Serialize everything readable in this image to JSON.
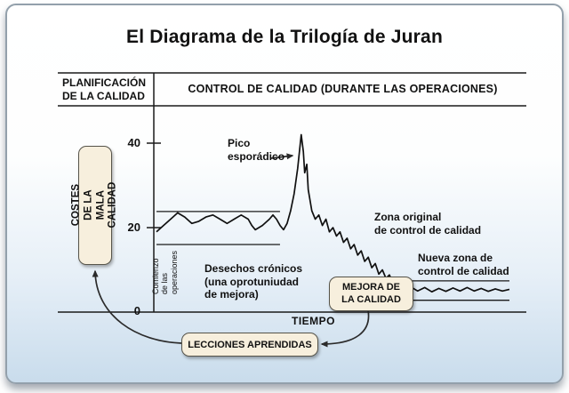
{
  "headers": {
    "planificacion": "PLANIFICACIÓN\nDE LA CALIDAD",
    "control": "CONTROL DE CALIDAD (DURANTE LAS OPERACIONES)"
  },
  "boxes": {
    "costes": "COSTES DE LA\nMALA CALIDAD",
    "mejora": "MEJORA DE\nLA CALIDAD",
    "lecciones": "LECCIONES APRENDIDAS"
  },
  "colors": {
    "panel_border": "#93a0ab",
    "panel_gradient_bottom": "#c9dcec",
    "tag_box_fill": "#f7efdd",
    "line_color": "#101010"
  },
  "chart_data": {
    "type": "line",
    "title": "El Diagrama de la Trilogía de Juran",
    "xlabel": "TIEMPO",
    "ylabel": "COSTES DE LA MALA CALIDAD",
    "ylim": [
      0,
      45
    ],
    "grid": false,
    "y_ticks": [
      {
        "value": 40,
        "label": "40"
      },
      {
        "value": 20,
        "label": "20"
      },
      {
        "value": 0,
        "label": "0"
      }
    ],
    "annotations": {
      "pico": "Pico\nesporádico",
      "zona_original": "Zona original\nde control de calidad",
      "nueva_zona": "Nueva zona de\ncontrol de calidad",
      "desechos": "Desechos crónicos\n(una oprotuniudad\nde mejora)",
      "comienzo": "Comienzo\nde las\noperaciones"
    },
    "zones": [
      {
        "name": "original",
        "t_from": 0,
        "t_to": 35,
        "low": 16,
        "high": 23.8
      },
      {
        "name": "nueva",
        "t_from": 70,
        "t_to": 100,
        "low": 2.8,
        "high": 7.4
      }
    ],
    "series": [
      {
        "name": "Costes de la mala calidad",
        "points": [
          [
            0,
            19
          ],
          [
            2,
            20.5
          ],
          [
            4,
            22
          ],
          [
            6,
            23.5
          ],
          [
            8,
            22.5
          ],
          [
            10,
            21
          ],
          [
            12,
            21.5
          ],
          [
            14,
            22.5
          ],
          [
            16,
            23
          ],
          [
            18,
            22
          ],
          [
            20,
            21
          ],
          [
            22,
            22
          ],
          [
            24,
            23
          ],
          [
            26,
            22
          ],
          [
            27,
            20.5
          ],
          [
            28,
            19.5
          ],
          [
            30,
            20.5
          ],
          [
            32,
            22
          ],
          [
            33,
            23
          ],
          [
            34,
            22
          ],
          [
            35,
            20.5
          ],
          [
            36,
            19.5
          ],
          [
            37,
            21
          ],
          [
            38,
            24
          ],
          [
            39,
            28
          ],
          [
            40,
            34
          ],
          [
            41,
            42
          ],
          [
            41.6,
            38
          ],
          [
            42,
            33
          ],
          [
            42.6,
            35
          ],
          [
            43,
            29
          ],
          [
            44,
            24
          ],
          [
            45,
            22
          ],
          [
            46,
            23
          ],
          [
            47,
            20.5
          ],
          [
            48,
            22
          ],
          [
            49,
            19
          ],
          [
            50,
            20
          ],
          [
            51,
            18
          ],
          [
            52,
            19
          ],
          [
            53,
            16.5
          ],
          [
            54,
            17.5
          ],
          [
            55,
            15
          ],
          [
            56,
            16
          ],
          [
            57,
            13.5
          ],
          [
            58,
            14.5
          ],
          [
            59,
            12
          ],
          [
            60,
            13
          ],
          [
            61,
            10.5
          ],
          [
            62,
            11.5
          ],
          [
            63,
            9
          ],
          [
            64,
            10
          ],
          [
            65,
            8
          ],
          [
            66,
            8.8
          ],
          [
            67,
            7
          ],
          [
            68,
            7.6
          ],
          [
            69,
            6.2
          ],
          [
            70,
            6.8
          ],
          [
            71,
            5.5
          ],
          [
            72,
            6
          ],
          [
            74,
            5
          ],
          [
            76,
            5.8
          ],
          [
            78,
            4.8
          ],
          [
            80,
            5.6
          ],
          [
            82,
            4.9
          ],
          [
            84,
            5.7
          ],
          [
            86,
            5
          ],
          [
            88,
            5.8
          ],
          [
            90,
            5
          ],
          [
            92,
            5.6
          ],
          [
            94,
            4.9
          ],
          [
            96,
            5.5
          ],
          [
            98,
            5
          ],
          [
            100,
            5.4
          ]
        ]
      }
    ]
  }
}
